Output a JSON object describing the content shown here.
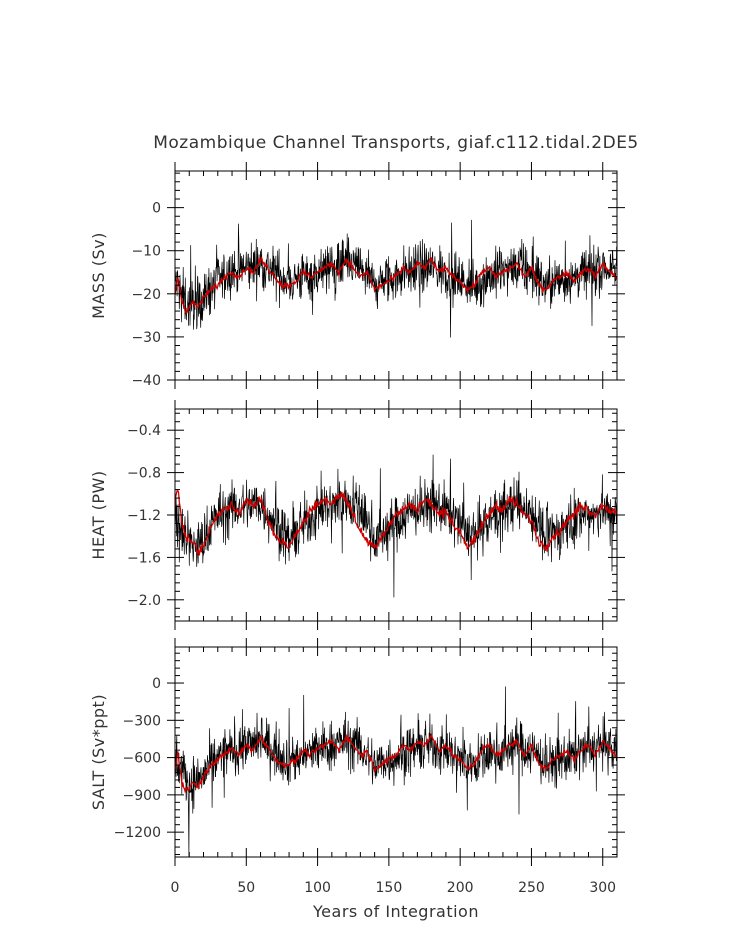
{
  "chart_data": {
    "type": "line",
    "title": "Mozambique Channel Transports, giaf.c112.tidal.2DE5",
    "xlabel": "Years of Integration",
    "xlim": [
      0,
      310
    ],
    "xticks": [
      0,
      50,
      100,
      150,
      200,
      250,
      300
    ],
    "colors": {
      "raw": "#000000",
      "smooth": "#cc0000"
    },
    "panels": [
      {
        "ylabel": "MASS (Sv)",
        "ylim": [
          -40,
          8.5
        ],
        "yticks": [
          0,
          -10,
          -20,
          -30,
          -40
        ],
        "ytick_labels": [
          "0",
          "−10",
          "−20",
          "−30",
          "−40"
        ],
        "series": [
          {
            "kind": "raw",
            "x": [
              0,
              5,
              10,
              15,
              20,
              25,
              30,
              40,
              50,
              60,
              70,
              80,
              90,
              100,
              110,
              120,
              130,
              140,
              150,
              160,
              170,
              180,
              190,
              200,
              210,
              220,
              230,
              240,
              250,
              260,
              270,
              280,
              290,
              300,
              310
            ],
            "y": [
              -17,
              -20,
              -23,
              -22,
              -21,
              -19,
              -17,
              -15,
              -14,
              -13,
              -15,
              -17,
              -16,
              -15,
              -14,
              -13,
              -14,
              -18,
              -17,
              -15,
              -14,
              -14,
              -15,
              -17,
              -18,
              -16,
              -15,
              -14,
              -15,
              -18,
              -17,
              -16,
              -15,
              -14,
              -15
            ],
            "spread": 7.5
          },
          {
            "kind": "smooth",
            "x": [
              0,
              2,
              5,
              8,
              12,
              16,
              20,
              25,
              30,
              35,
              40,
              45,
              50,
              55,
              60,
              65,
              70,
              75,
              80,
              85,
              90,
              95,
              100,
              105,
              110,
              115,
              120,
              125,
              130,
              135,
              140,
              145,
              150,
              155,
              160,
              165,
              170,
              175,
              180,
              185,
              190,
              195,
              200,
              205,
              210,
              215,
              220,
              225,
              230,
              235,
              240,
              245,
              250,
              255,
              260,
              265,
              270,
              275,
              280,
              285,
              290,
              295,
              300,
              305,
              310
            ],
            "y": [
              -20,
              -16,
              -22,
              -24,
              -22,
              -23,
              -21,
              -19,
              -18,
              -16,
              -15,
              -16,
              -14,
              -15,
              -12,
              -14,
              -16,
              -18,
              -18,
              -17,
              -15,
              -16,
              -15,
              -14,
              -13,
              -15,
              -12,
              -14,
              -16,
              -15,
              -19,
              -18,
              -17,
              -16,
              -14,
              -15,
              -13,
              -14,
              -12,
              -15,
              -14,
              -16,
              -17,
              -19,
              -18,
              -15,
              -14,
              -16,
              -15,
              -14,
              -13,
              -16,
              -14,
              -18,
              -19,
              -17,
              -16,
              -15,
              -17,
              -15,
              -14,
              -16,
              -13,
              -15,
              -16
            ]
          }
        ]
      },
      {
        "ylabel": "HEAT (PW)",
        "ylim": [
          -2.2,
          -0.2
        ],
        "yticks": [
          -0.4,
          -0.8,
          -1.2,
          -1.6,
          -2.0
        ],
        "ytick_labels": [
          "−0.4",
          "−0.8",
          "−1.2",
          "−1.6",
          "−2.0"
        ],
        "series": [
          {
            "kind": "raw",
            "x": [
              0,
              5,
              10,
              15,
              20,
              25,
              30,
              40,
              50,
              60,
              70,
              80,
              90,
              100,
              110,
              120,
              130,
              140,
              150,
              160,
              170,
              180,
              190,
              200,
              210,
              220,
              230,
              240,
              250,
              260,
              270,
              280,
              290,
              300,
              310
            ],
            "y": [
              -1.2,
              -1.35,
              -1.45,
              -1.5,
              -1.45,
              -1.3,
              -1.2,
              -1.15,
              -1.1,
              -1.1,
              -1.25,
              -1.45,
              -1.3,
              -1.15,
              -1.1,
              -1.05,
              -1.15,
              -1.4,
              -1.35,
              -1.2,
              -1.15,
              -1.1,
              -1.15,
              -1.3,
              -1.4,
              -1.25,
              -1.15,
              -1.1,
              -1.15,
              -1.4,
              -1.35,
              -1.25,
              -1.2,
              -1.15,
              -1.2
            ],
            "spread": 0.32
          },
          {
            "kind": "smooth",
            "x": [
              0,
              2,
              5,
              8,
              12,
              16,
              20,
              25,
              30,
              35,
              40,
              45,
              50,
              55,
              60,
              65,
              70,
              75,
              80,
              85,
              90,
              95,
              100,
              105,
              110,
              115,
              120,
              125,
              130,
              135,
              140,
              145,
              150,
              155,
              160,
              165,
              170,
              175,
              180,
              185,
              190,
              195,
              200,
              205,
              210,
              215,
              220,
              225,
              230,
              235,
              240,
              245,
              250,
              255,
              260,
              265,
              270,
              275,
              280,
              285,
              290,
              295,
              300,
              305,
              310
            ],
            "y": [
              -1.1,
              -0.95,
              -1.3,
              -1.4,
              -1.45,
              -1.55,
              -1.5,
              -1.3,
              -1.2,
              -1.15,
              -1.1,
              -1.2,
              -1.05,
              -1.1,
              -1.05,
              -1.25,
              -1.4,
              -1.45,
              -1.5,
              -1.4,
              -1.25,
              -1.15,
              -1.1,
              -1.05,
              -1.1,
              -1.0,
              -1.05,
              -1.2,
              -1.35,
              -1.45,
              -1.5,
              -1.4,
              -1.3,
              -1.2,
              -1.15,
              -1.1,
              -1.15,
              -1.05,
              -1.1,
              -1.2,
              -1.15,
              -1.3,
              -1.35,
              -1.5,
              -1.45,
              -1.3,
              -1.2,
              -1.1,
              -1.15,
              -1.05,
              -1.1,
              -1.2,
              -1.25,
              -1.45,
              -1.5,
              -1.4,
              -1.35,
              -1.25,
              -1.2,
              -1.1,
              -1.15,
              -1.2,
              -1.1,
              -1.15,
              -1.2
            ]
          }
        ]
      },
      {
        "ylabel": "SALT (Sv*ppt)",
        "ylim": [
          -1400,
          290
        ],
        "yticks": [
          0,
          -300,
          -600,
          -900,
          -1200
        ],
        "ytick_labels": [
          "0",
          "−300",
          "−600",
          "−900",
          "−1200"
        ],
        "series": [
          {
            "kind": "raw",
            "x": [
              0,
              5,
              10,
              15,
              20,
              25,
              30,
              40,
              50,
              60,
              70,
              80,
              90,
              100,
              110,
              120,
              130,
              140,
              150,
              160,
              170,
              180,
              190,
              200,
              210,
              220,
              230,
              240,
              250,
              260,
              270,
              280,
              290,
              300,
              310
            ],
            "y": [
              -600,
              -700,
              -820,
              -780,
              -740,
              -660,
              -600,
              -540,
              -500,
              -470,
              -540,
              -620,
              -580,
              -540,
              -500,
              -460,
              -520,
              -660,
              -620,
              -560,
              -520,
              -500,
              -540,
              -600,
              -640,
              -580,
              -540,
              -500,
              -540,
              -660,
              -620,
              -580,
              -540,
              -500,
              -540
            ],
            "spread": 260
          },
          {
            "kind": "smooth",
            "x": [
              0,
              2,
              5,
              8,
              12,
              16,
              20,
              25,
              30,
              35,
              40,
              45,
              50,
              55,
              60,
              65,
              70,
              75,
              80,
              85,
              90,
              95,
              100,
              105,
              110,
              115,
              120,
              125,
              130,
              135,
              140,
              145,
              150,
              155,
              160,
              165,
              170,
              175,
              180,
              185,
              190,
              195,
              200,
              205,
              210,
              215,
              220,
              225,
              230,
              235,
              240,
              245,
              250,
              255,
              260,
              265,
              270,
              275,
              280,
              285,
              290,
              295,
              300,
              305,
              310
            ],
            "y": [
              -700,
              -560,
              -820,
              -860,
              -800,
              -840,
              -760,
              -660,
              -620,
              -560,
              -530,
              -580,
              -500,
              -540,
              -430,
              -520,
              -600,
              -660,
              -650,
              -620,
              -540,
              -580,
              -530,
              -500,
              -470,
              -540,
              -430,
              -500,
              -580,
              -550,
              -690,
              -650,
              -620,
              -580,
              -500,
              -540,
              -470,
              -500,
              -430,
              -540,
              -500,
              -580,
              -620,
              -690,
              -650,
              -540,
              -500,
              -580,
              -540,
              -500,
              -470,
              -580,
              -500,
              -650,
              -690,
              -620,
              -580,
              -540,
              -620,
              -540,
              -500,
              -580,
              -470,
              -540,
              -580
            ]
          }
        ]
      }
    ]
  }
}
